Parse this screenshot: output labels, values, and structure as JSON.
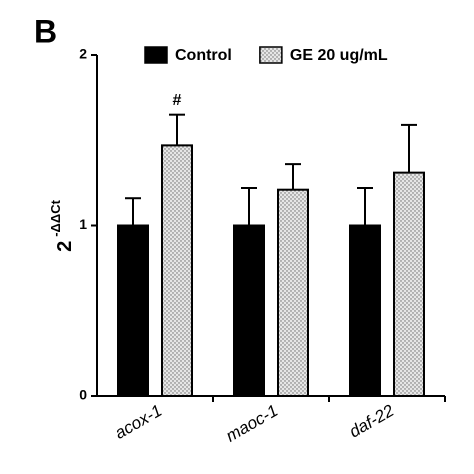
{
  "chart_data": {
    "type": "bar",
    "panel_label": "B",
    "ylabel": {
      "base": "2",
      "superscript": "-ΔΔCt"
    },
    "categories": [
      "acox-1",
      "maoc-1",
      "daf-22"
    ],
    "series": [
      {
        "name": "Control",
        "color": "#000000",
        "values": [
          1,
          1,
          1
        ],
        "errors": [
          0.16,
          0.22,
          0.22
        ]
      },
      {
        "name": "GE 20 ug/mL",
        "color": "#d9d9d9",
        "pattern": "dots",
        "values": [
          1.47,
          1.21,
          1.31
        ],
        "errors": [
          0.18,
          0.15,
          0.28
        ]
      }
    ],
    "annotations": [
      {
        "text": "#",
        "category": 0,
        "series": 1
      }
    ],
    "ylim": [
      0,
      2
    ],
    "yticks": [
      0,
      1,
      2
    ],
    "grid": false
  }
}
